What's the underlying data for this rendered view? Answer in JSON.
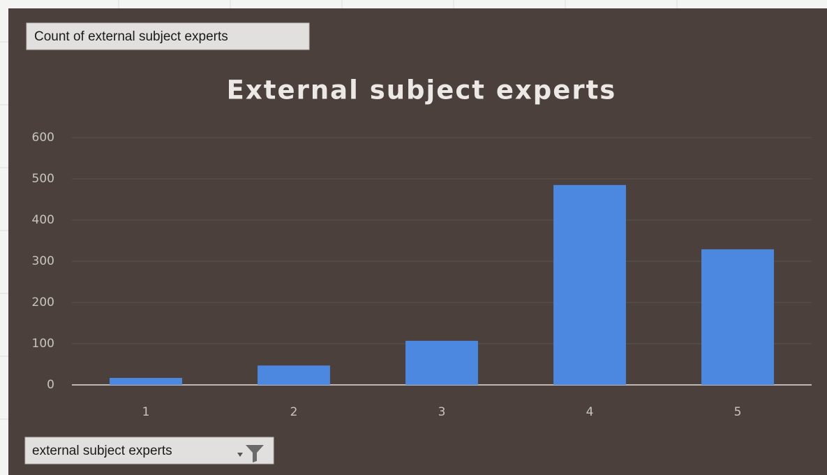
{
  "chart_data": {
    "type": "bar",
    "title": "External subject experts",
    "value_field_label": "Count of external subject experts",
    "axis_field_label": "external subject experts",
    "categories": [
      "1",
      "2",
      "3",
      "4",
      "5"
    ],
    "values": [
      17,
      47,
      107,
      485,
      329
    ],
    "color": "#4d88e0",
    "ylim": [
      0,
      600
    ],
    "yticks": [
      0,
      100,
      200,
      300,
      400,
      500,
      600
    ],
    "grid": true
  }
}
